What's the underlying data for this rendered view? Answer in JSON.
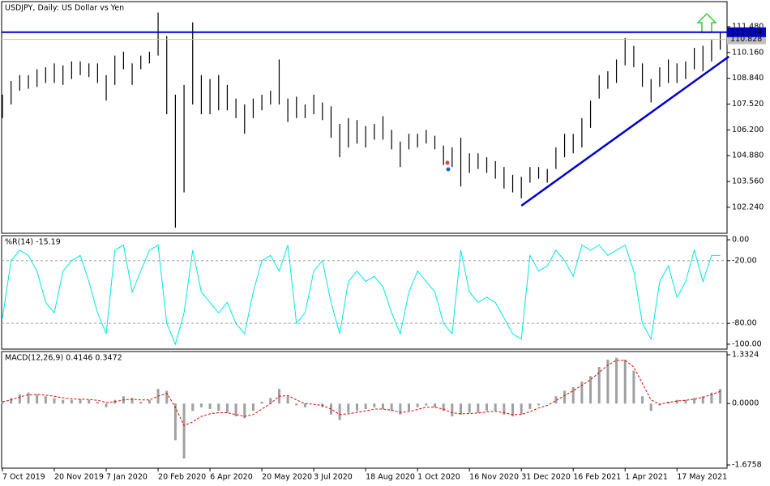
{
  "chart_data": [
    {
      "type": "hlc-bar",
      "title": "USDJPY, Daily:  US Dollar vs Yen",
      "categories": [
        "7 Oct 2019",
        null,
        null,
        null,
        null,
        null,
        "20 Nov 2019",
        null,
        null,
        null,
        null,
        null,
        "7 Jan 2020",
        null,
        null,
        null,
        null,
        null,
        "20 Feb 2020",
        null,
        null,
        null,
        null,
        null,
        "6 Apr 2020",
        null,
        null,
        null,
        null,
        null,
        "20 May 2020",
        null,
        null,
        null,
        null,
        null,
        "3 Jul 2020",
        null,
        null,
        null,
        null,
        null,
        "18 Aug 2020",
        null,
        null,
        null,
        null,
        null,
        "1 Oct 2020",
        null,
        null,
        null,
        null,
        null,
        "16 Nov 2020",
        null,
        null,
        null,
        null,
        null,
        "31 Dec 2020",
        null,
        null,
        null,
        null,
        null,
        "16 Feb 2021",
        null,
        null,
        null,
        null,
        null,
        "1 Apr 2021",
        null,
        null,
        null,
        null,
        null,
        "17 May 2021",
        null,
        null,
        null,
        null,
        null
      ],
      "high": [
        108.0,
        108.7,
        109.0,
        109.0,
        109.3,
        109.4,
        109.6,
        109.5,
        109.7,
        109.7,
        109.6,
        109.6,
        109.0,
        110.0,
        110.2,
        109.6,
        110.0,
        110.2,
        112.2,
        111.0,
        108.0,
        108.5,
        111.7,
        109.0,
        108.8,
        109.0,
        108.5,
        107.8,
        107.5,
        107.8,
        108.0,
        108.2,
        109.8,
        107.8,
        107.9,
        107.5,
        108.0,
        107.6,
        107.4,
        106.5,
        106.8,
        106.7,
        106.4,
        106.5,
        106.9,
        106.2,
        105.6,
        106.0,
        106.0,
        106.2,
        105.9,
        105.4,
        105.3,
        105.8,
        105.0,
        105.0,
        104.8,
        104.6,
        104.3,
        103.9,
        103.8,
        104.3,
        104.3,
        104.2,
        105.3,
        106.0,
        106.0,
        106.8,
        107.7,
        109.0,
        109.2,
        109.8,
        110.9,
        110.5,
        109.6,
        108.8,
        109.4,
        109.8,
        109.6,
        109.7,
        110.4,
        110.5,
        110.8,
        111.2
      ],
      "low": [
        106.8,
        107.5,
        108.2,
        108.3,
        108.4,
        108.6,
        108.6,
        108.5,
        108.8,
        109.0,
        108.9,
        108.6,
        107.7,
        108.5,
        109.3,
        108.5,
        109.3,
        109.6,
        110.0,
        107.0,
        101.2,
        103.0,
        107.5,
        107.0,
        107.0,
        107.2,
        107.2,
        106.8,
        106.0,
        106.8,
        107.2,
        107.5,
        107.5,
        106.6,
        106.8,
        106.8,
        107.0,
        106.7,
        105.8,
        104.8,
        105.3,
        105.5,
        105.3,
        105.7,
        105.7,
        105.2,
        104.3,
        105.2,
        105.3,
        105.5,
        105.2,
        104.4,
        104.3,
        103.3,
        104.0,
        104.2,
        104.0,
        103.7,
        103.2,
        103.0,
        102.7,
        103.5,
        103.7,
        103.5,
        104.2,
        104.8,
        105.0,
        105.3,
        106.3,
        107.8,
        108.3,
        108.6,
        109.5,
        109.4,
        108.4,
        107.6,
        108.4,
        108.6,
        108.6,
        108.8,
        109.3,
        109.2,
        109.7,
        110.3
      ],
      "color": "#000000",
      "ylim": [
        100.91,
        112.76
      ],
      "yticks": [
        {
          "value": 111.48,
          "label": "111.480"
        },
        {
          "value": 110.16,
          "label": "110.160"
        },
        {
          "value": 108.84,
          "label": "108.840"
        },
        {
          "value": 107.52,
          "label": "107.520"
        },
        {
          "value": 106.2,
          "label": "106.200"
        },
        {
          "value": 104.88,
          "label": "104.880"
        },
        {
          "value": 103.56,
          "label": "103.560"
        },
        {
          "value": 102.24,
          "label": "102.240"
        }
      ],
      "levels": [
        {
          "value": 111.194,
          "label": "111.194",
          "color": "#0000cd"
        }
      ],
      "current_price": 110.828,
      "trendline": {
        "start": [
          60,
          102.32
        ],
        "end": [
          84,
          109.95
        ],
        "color": "#0000cd"
      }
    },
    {
      "type": "line",
      "title": "%R(14) -15.19",
      "values": [
        -75,
        -20,
        -10,
        -15,
        -30,
        -60,
        -70,
        -30,
        -20,
        -15,
        -40,
        -70,
        -90,
        -10,
        -5,
        -50,
        -30,
        -10,
        -5,
        -80,
        -100,
        -70,
        -10,
        -50,
        -60,
        -70,
        -60,
        -80,
        -90,
        -50,
        -20,
        -15,
        -30,
        -5,
        -80,
        -70,
        -30,
        -20,
        -60,
        -90,
        -40,
        -30,
        -40,
        -35,
        -45,
        -70,
        -90,
        -50,
        -30,
        -40,
        -50,
        -80,
        -90,
        -10,
        -50,
        -60,
        -55,
        -60,
        -75,
        -90,
        -95,
        -15,
        -30,
        -25,
        -10,
        -20,
        -35,
        -5,
        -10,
        -5,
        -15,
        -10,
        -5,
        -30,
        -80,
        -95,
        -40,
        -25,
        -55,
        -40,
        -10,
        -40,
        -15,
        -15
      ],
      "color": "#00e5e5",
      "ylim": [
        -104.7,
        3.9
      ],
      "yticks": [
        {
          "value": 0,
          "label": "0.00"
        },
        {
          "value": -20,
          "label": "-20.00"
        },
        {
          "value": -80,
          "label": "-80.00"
        },
        {
          "value": -100,
          "label": "-100.00"
        }
      ],
      "levels": [
        -20,
        -80
      ]
    },
    {
      "type": "macd",
      "title": "MACD(12,26,9) 0.4146 0.3472",
      "histogram": [
        0.05,
        0.15,
        0.25,
        0.3,
        0.25,
        0.2,
        0.15,
        0.1,
        0.1,
        0.12,
        0.1,
        0.05,
        -0.1,
        0.1,
        0.2,
        0.15,
        0.05,
        0.1,
        0.4,
        0.35,
        -1.0,
        -1.5,
        -0.2,
        -0.1,
        -0.15,
        -0.2,
        -0.25,
        -0.35,
        -0.4,
        -0.2,
        0.05,
        0.15,
        0.4,
        0.2,
        -0.05,
        -0.1,
        0.0,
        -0.1,
        -0.3,
        -0.45,
        -0.25,
        -0.2,
        -0.15,
        -0.1,
        -0.15,
        -0.2,
        -0.3,
        -0.2,
        -0.1,
        -0.05,
        -0.1,
        -0.2,
        -0.35,
        -0.3,
        -0.25,
        -0.25,
        -0.2,
        -0.2,
        -0.3,
        -0.35,
        -0.3,
        -0.15,
        -0.05,
        0.0,
        0.2,
        0.35,
        0.45,
        0.6,
        0.75,
        1.0,
        1.2,
        1.25,
        1.2,
        0.9,
        0.2,
        -0.2,
        -0.05,
        0.05,
        0.1,
        0.1,
        0.15,
        0.2,
        0.3,
        0.4
      ],
      "signal": [
        0.05,
        0.1,
        0.18,
        0.24,
        0.25,
        0.23,
        0.2,
        0.16,
        0.13,
        0.12,
        0.11,
        0.09,
        0.03,
        0.05,
        0.1,
        0.12,
        0.1,
        0.1,
        0.2,
        0.28,
        -0.1,
        -0.6,
        -0.5,
        -0.35,
        -0.28,
        -0.25,
        -0.25,
        -0.3,
        -0.35,
        -0.3,
        -0.15,
        0.0,
        0.2,
        0.22,
        0.1,
        0.0,
        -0.02,
        -0.05,
        -0.15,
        -0.3,
        -0.28,
        -0.24,
        -0.2,
        -0.15,
        -0.15,
        -0.18,
        -0.24,
        -0.22,
        -0.16,
        -0.1,
        -0.1,
        -0.15,
        -0.25,
        -0.28,
        -0.27,
        -0.26,
        -0.23,
        -0.21,
        -0.25,
        -0.3,
        -0.3,
        -0.22,
        -0.12,
        -0.05,
        0.08,
        0.22,
        0.35,
        0.5,
        0.65,
        0.85,
        1.05,
        1.18,
        1.18,
        1.0,
        0.55,
        0.1,
        -0.02,
        0.03,
        0.07,
        0.09,
        0.12,
        0.17,
        0.25,
        0.33
      ],
      "histogram_color": "#a0a0a0",
      "signal_color": "#e00000",
      "ylim": [
        -1.764,
        1.421
      ],
      "yticks": [
        1.3324,
        {
          "value": 0,
          "label": "0.0000"
        },
        -1.6758
      ]
    }
  ]
}
